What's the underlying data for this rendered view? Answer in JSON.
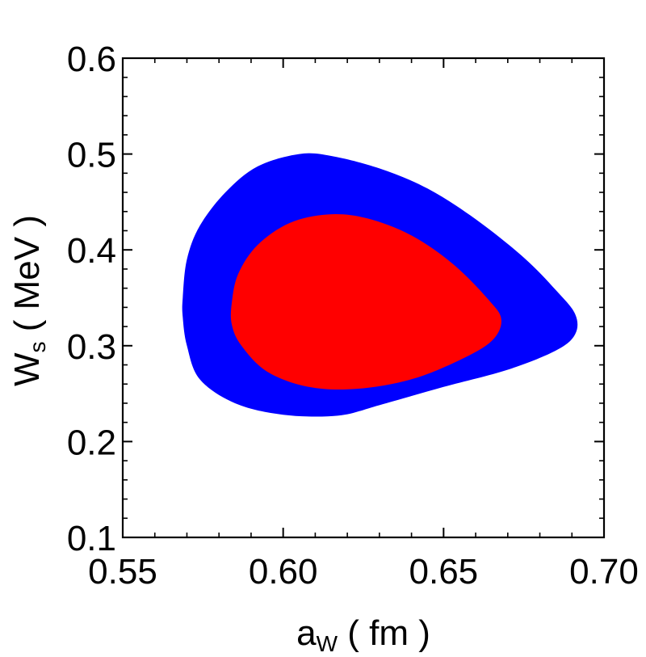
{
  "chart_data": {
    "type": "contour",
    "xlabel": {
      "main": "a",
      "sub": "W",
      "unit": " ( fm )"
    },
    "ylabel": {
      "main": "W",
      "sub": "s",
      "unit": " ( MeV )"
    },
    "xlim": [
      0.55,
      0.7
    ],
    "ylim": [
      0.1,
      0.6
    ],
    "xticks": [
      0.55,
      0.6,
      0.65,
      0.7
    ],
    "xtick_labels": [
      "0.55",
      "0.60",
      "0.65",
      "0.70"
    ],
    "yticks": [
      0.1,
      0.2,
      0.3,
      0.4,
      0.5,
      0.6
    ],
    "ytick_labels": [
      "0.1",
      "0.2",
      "0.3",
      "0.4",
      "0.5",
      "0.6"
    ],
    "x_minor_step": 0.01,
    "y_minor_step": 0.02,
    "regions": [
      {
        "name": "outer-confidence-region",
        "color": "#0000ff",
        "points": [
          [
            0.5687,
            0.35
          ],
          [
            0.57,
            0.39
          ],
          [
            0.574,
            0.425
          ],
          [
            0.582,
            0.46
          ],
          [
            0.592,
            0.487
          ],
          [
            0.605,
            0.5
          ],
          [
            0.615,
            0.498
          ],
          [
            0.63,
            0.485
          ],
          [
            0.645,
            0.464
          ],
          [
            0.66,
            0.432
          ],
          [
            0.675,
            0.392
          ],
          [
            0.685,
            0.358
          ],
          [
            0.691,
            0.333
          ],
          [
            0.691,
            0.312
          ],
          [
            0.685,
            0.295
          ],
          [
            0.67,
            0.275
          ],
          [
            0.65,
            0.257
          ],
          [
            0.63,
            0.238
          ],
          [
            0.617,
            0.227
          ],
          [
            0.6,
            0.228
          ],
          [
            0.585,
            0.24
          ],
          [
            0.574,
            0.265
          ],
          [
            0.57,
            0.3
          ],
          [
            0.5687,
            0.33
          ]
        ]
      },
      {
        "name": "inner-confidence-region",
        "color": "#ff0000",
        "points": [
          [
            0.584,
            0.345
          ],
          [
            0.586,
            0.375
          ],
          [
            0.592,
            0.405
          ],
          [
            0.602,
            0.428
          ],
          [
            0.614,
            0.437
          ],
          [
            0.626,
            0.433
          ],
          [
            0.64,
            0.415
          ],
          [
            0.653,
            0.385
          ],
          [
            0.664,
            0.348
          ],
          [
            0.668,
            0.327
          ],
          [
            0.665,
            0.305
          ],
          [
            0.655,
            0.285
          ],
          [
            0.64,
            0.265
          ],
          [
            0.623,
            0.255
          ],
          [
            0.608,
            0.257
          ],
          [
            0.595,
            0.273
          ],
          [
            0.587,
            0.3
          ],
          [
            0.584,
            0.322
          ]
        ]
      }
    ]
  }
}
